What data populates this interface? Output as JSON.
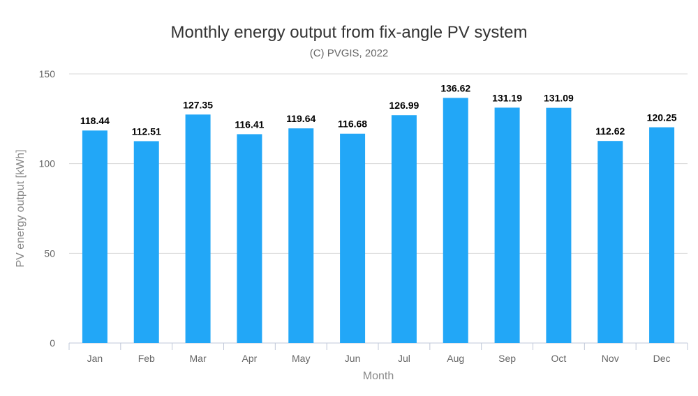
{
  "chart_data": {
    "type": "bar",
    "title": "Monthly energy output from fix-angle PV system",
    "subtitle": "(C) PVGIS, 2022",
    "xlabel": "Month",
    "ylabel": "PV energy output [kWh]",
    "categories": [
      "Jan",
      "Feb",
      "Mar",
      "Apr",
      "May",
      "Jun",
      "Jul",
      "Aug",
      "Sep",
      "Oct",
      "Nov",
      "Dec"
    ],
    "values": [
      118.44,
      112.51,
      127.35,
      116.41,
      119.64,
      116.68,
      126.99,
      136.62,
      131.19,
      131.09,
      112.62,
      120.25
    ],
    "data_labels": [
      "118.44",
      "112.51",
      "127.35",
      "116.41",
      "119.64",
      "116.68",
      "126.99",
      "136.62",
      "131.19",
      "131.09",
      "112.62",
      "120.25"
    ],
    "ylim": [
      0,
      150
    ],
    "yticks": [
      0,
      50,
      100,
      150
    ],
    "ytick_labels": [
      "0",
      "50",
      "100",
      "150"
    ],
    "grid": true,
    "legend": "none",
    "bar_color": "#22a7f7",
    "grid_color": "#d9d9d9",
    "axis_color": "#c0c8d8"
  }
}
